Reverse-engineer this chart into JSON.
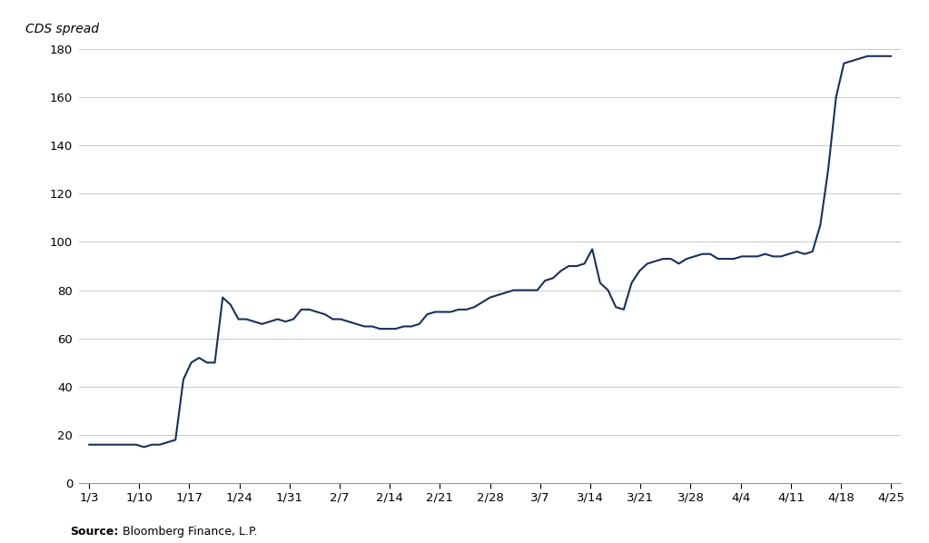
{
  "ylabel": "CDS spread",
  "source_bold": "Source:",
  "source_text": " Bloomberg Finance, L.P.",
  "line_color": "#1a2f5a",
  "bg_color": "#ffffff",
  "grid_color": "#c8c8c8",
  "ylim": [
    0,
    180
  ],
  "yticks": [
    0,
    20,
    40,
    60,
    80,
    100,
    120,
    140,
    160,
    180
  ],
  "xtick_labels": [
    "1/3",
    "1/10",
    "1/17",
    "1/24",
    "1/31",
    "2/7",
    "2/14",
    "2/21",
    "2/28",
    "3/7",
    "3/14",
    "3/21",
    "3/28",
    "4/4",
    "4/11",
    "4/18",
    "4/25"
  ],
  "y_values": [
    16,
    16,
    16,
    16,
    16,
    16,
    16,
    15,
    16,
    16,
    17,
    18,
    43,
    50,
    52,
    50,
    50,
    77,
    74,
    68,
    68,
    67,
    66,
    67,
    68,
    67,
    68,
    72,
    72,
    71,
    70,
    68,
    68,
    67,
    66,
    65,
    65,
    64,
    64,
    64,
    65,
    65,
    66,
    70,
    71,
    71,
    71,
    72,
    72,
    73,
    75,
    77,
    78,
    79,
    80,
    80,
    80,
    80,
    84,
    85,
    88,
    90,
    90,
    91,
    97,
    83,
    80,
    73,
    72,
    83,
    88,
    91,
    92,
    93,
    93,
    91,
    93,
    94,
    95,
    95,
    93,
    93,
    93,
    94,
    94,
    94,
    95,
    94,
    94,
    95,
    96,
    95,
    96,
    107,
    130,
    160,
    174,
    175,
    176,
    177,
    177,
    177,
    177
  ]
}
